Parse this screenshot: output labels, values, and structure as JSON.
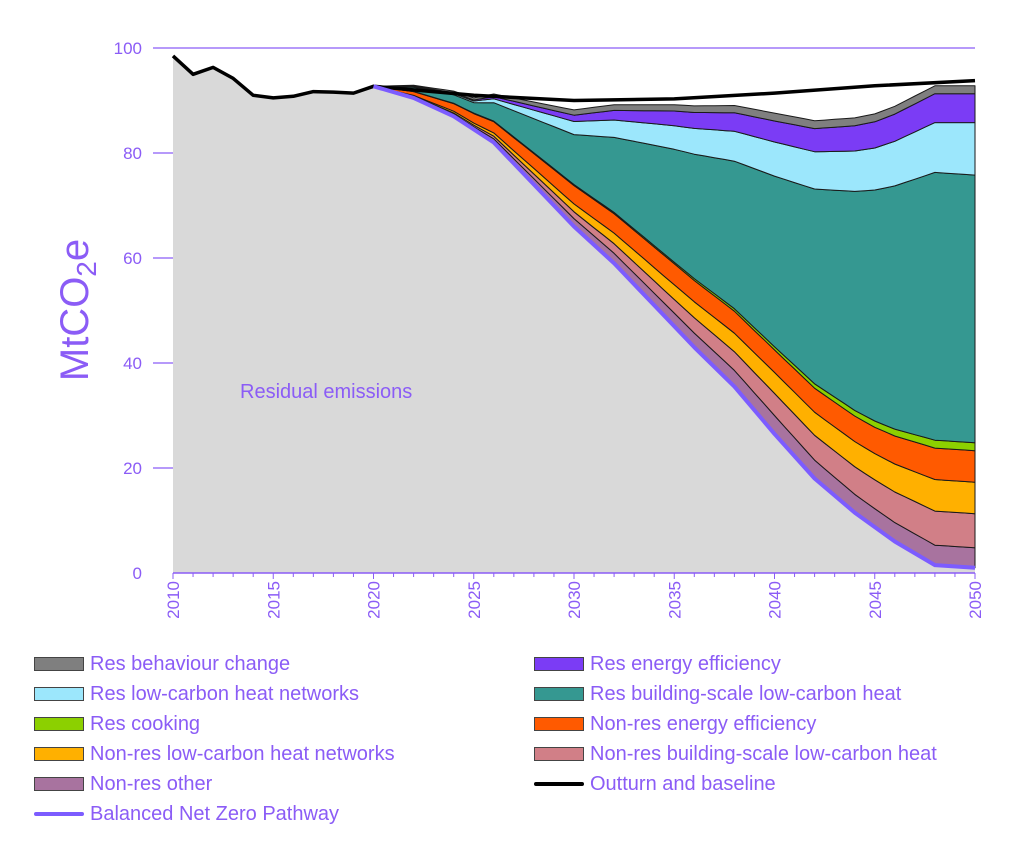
{
  "colors": {
    "text": "#8b5cf6",
    "grid": "#8b5cf6",
    "residual": "#d9d9d9",
    "outturn": "#000000",
    "pathway": "#7c5cff"
  },
  "chart_data": {
    "type": "area",
    "title": "",
    "xlabel": "",
    "ylabel": "MtCO2e",
    "ylabel_parts": {
      "main": "MtCO",
      "sub": "2",
      "tail": "e"
    },
    "xlim": [
      2010,
      2050
    ],
    "ylim": [
      0,
      100
    ],
    "yticks": [
      0,
      20,
      40,
      60,
      80,
      100
    ],
    "xticks": [
      2010,
      2015,
      2020,
      2025,
      2030,
      2035,
      2040,
      2045,
      2050
    ],
    "grid": true,
    "annotation": "Residual emissions",
    "outturn": {
      "name": "Outturn and baseline",
      "x": [
        2010,
        2011,
        2012,
        2013,
        2014,
        2015,
        2016,
        2017,
        2018,
        2019,
        2020,
        2025,
        2030,
        2035,
        2040,
        2045,
        2050
      ],
      "y": [
        98.5,
        95,
        96.3,
        94.2,
        91,
        90.5,
        90.8,
        91.7,
        91.6,
        91.4,
        92.7,
        91,
        90,
        90.3,
        91.4,
        92.8,
        93.8
      ]
    },
    "pathway": {
      "name": "Balanced Net Zero Pathway",
      "x": [
        2020,
        2022,
        2024,
        2026,
        2028,
        2030,
        2032,
        2034,
        2036,
        2038,
        2040,
        2042,
        2044,
        2046,
        2048,
        2050
      ],
      "y": [
        92.7,
        90.5,
        87,
        82,
        74,
        66,
        59,
        51,
        43,
        35.5,
        26.5,
        18,
        11.5,
        6,
        1.5,
        1
      ]
    },
    "stack_x": [
      2020,
      2025,
      2030,
      2035,
      2040,
      2045,
      2048,
      2050
    ],
    "series": [
      {
        "name": "Non-res other",
        "color": "#a8739f",
        "values": [
          0,
          0.5,
          1.5,
          2.5,
          3.5,
          3.5,
          3.8,
          3.8
        ]
      },
      {
        "name": "Non-res building-scale low-carbon heat",
        "color": "#d17f87",
        "values": [
          0,
          0.3,
          1.3,
          2.6,
          4.2,
          5.5,
          6.5,
          6.5
        ]
      },
      {
        "name": "Non-res low-carbon heat networks",
        "color": "#ffb000",
        "values": [
          0,
          0.4,
          1.5,
          2.8,
          4.0,
          5.0,
          6.0,
          6.0
        ]
      },
      {
        "name": "Non-res energy efficiency",
        "color": "#ff5a00",
        "values": [
          0,
          1.8,
          3.5,
          4.0,
          4.3,
          5.0,
          6.0,
          6.0
        ]
      },
      {
        "name": "Res cooking",
        "color": "#8cd000",
        "values": [
          0,
          0.1,
          0.2,
          0.3,
          0.6,
          1.2,
          1.5,
          1.5
        ]
      },
      {
        "name": "Res building-scale low-carbon heat",
        "color": "#359891",
        "values": [
          0,
          2.0,
          9.5,
          21.5,
          32.5,
          44.0,
          51.0,
          51.0
        ]
      },
      {
        "name": "Res low-carbon heat networks",
        "color": "#9ce7fc",
        "values": [
          0,
          0.3,
          2.5,
          4.5,
          6.5,
          8.0,
          9.5,
          10.0
        ]
      },
      {
        "name": "Res energy efficiency",
        "color": "#7b3cf5",
        "values": [
          0,
          0.2,
          1.2,
          2.8,
          4.0,
          5.0,
          5.5,
          5.5
        ]
      },
      {
        "name": "Res behaviour change",
        "color": "#7f7f7f",
        "values": [
          0,
          0.4,
          1.0,
          1.2,
          1.5,
          1.5,
          1.5,
          1.5
        ]
      }
    ]
  },
  "legend": {
    "items": [
      {
        "label": "Res behaviour change",
        "type": "box",
        "color": "#7f7f7f"
      },
      {
        "label": "Res energy efficiency",
        "type": "box",
        "color": "#7b3cf5"
      },
      {
        "label": "Res low-carbon heat networks",
        "type": "box",
        "color": "#9ce7fc"
      },
      {
        "label": "Res building-scale low-carbon heat",
        "type": "box",
        "color": "#359891"
      },
      {
        "label": "Res cooking",
        "type": "box",
        "color": "#8cd000"
      },
      {
        "label": "Non-res energy efficiency",
        "type": "box",
        "color": "#ff5a00"
      },
      {
        "label": "Non-res low-carbon heat networks",
        "type": "box",
        "color": "#ffb000"
      },
      {
        "label": "Non-res building-scale low-carbon heat",
        "type": "box",
        "color": "#d17f87"
      },
      {
        "label": "Non-res other",
        "type": "box",
        "color": "#a8739f"
      },
      {
        "label": "Outturn and baseline",
        "type": "line",
        "color": "#000000"
      },
      {
        "label": "Balanced Net Zero Pathway",
        "type": "line",
        "color": "#7c5cff"
      }
    ]
  }
}
